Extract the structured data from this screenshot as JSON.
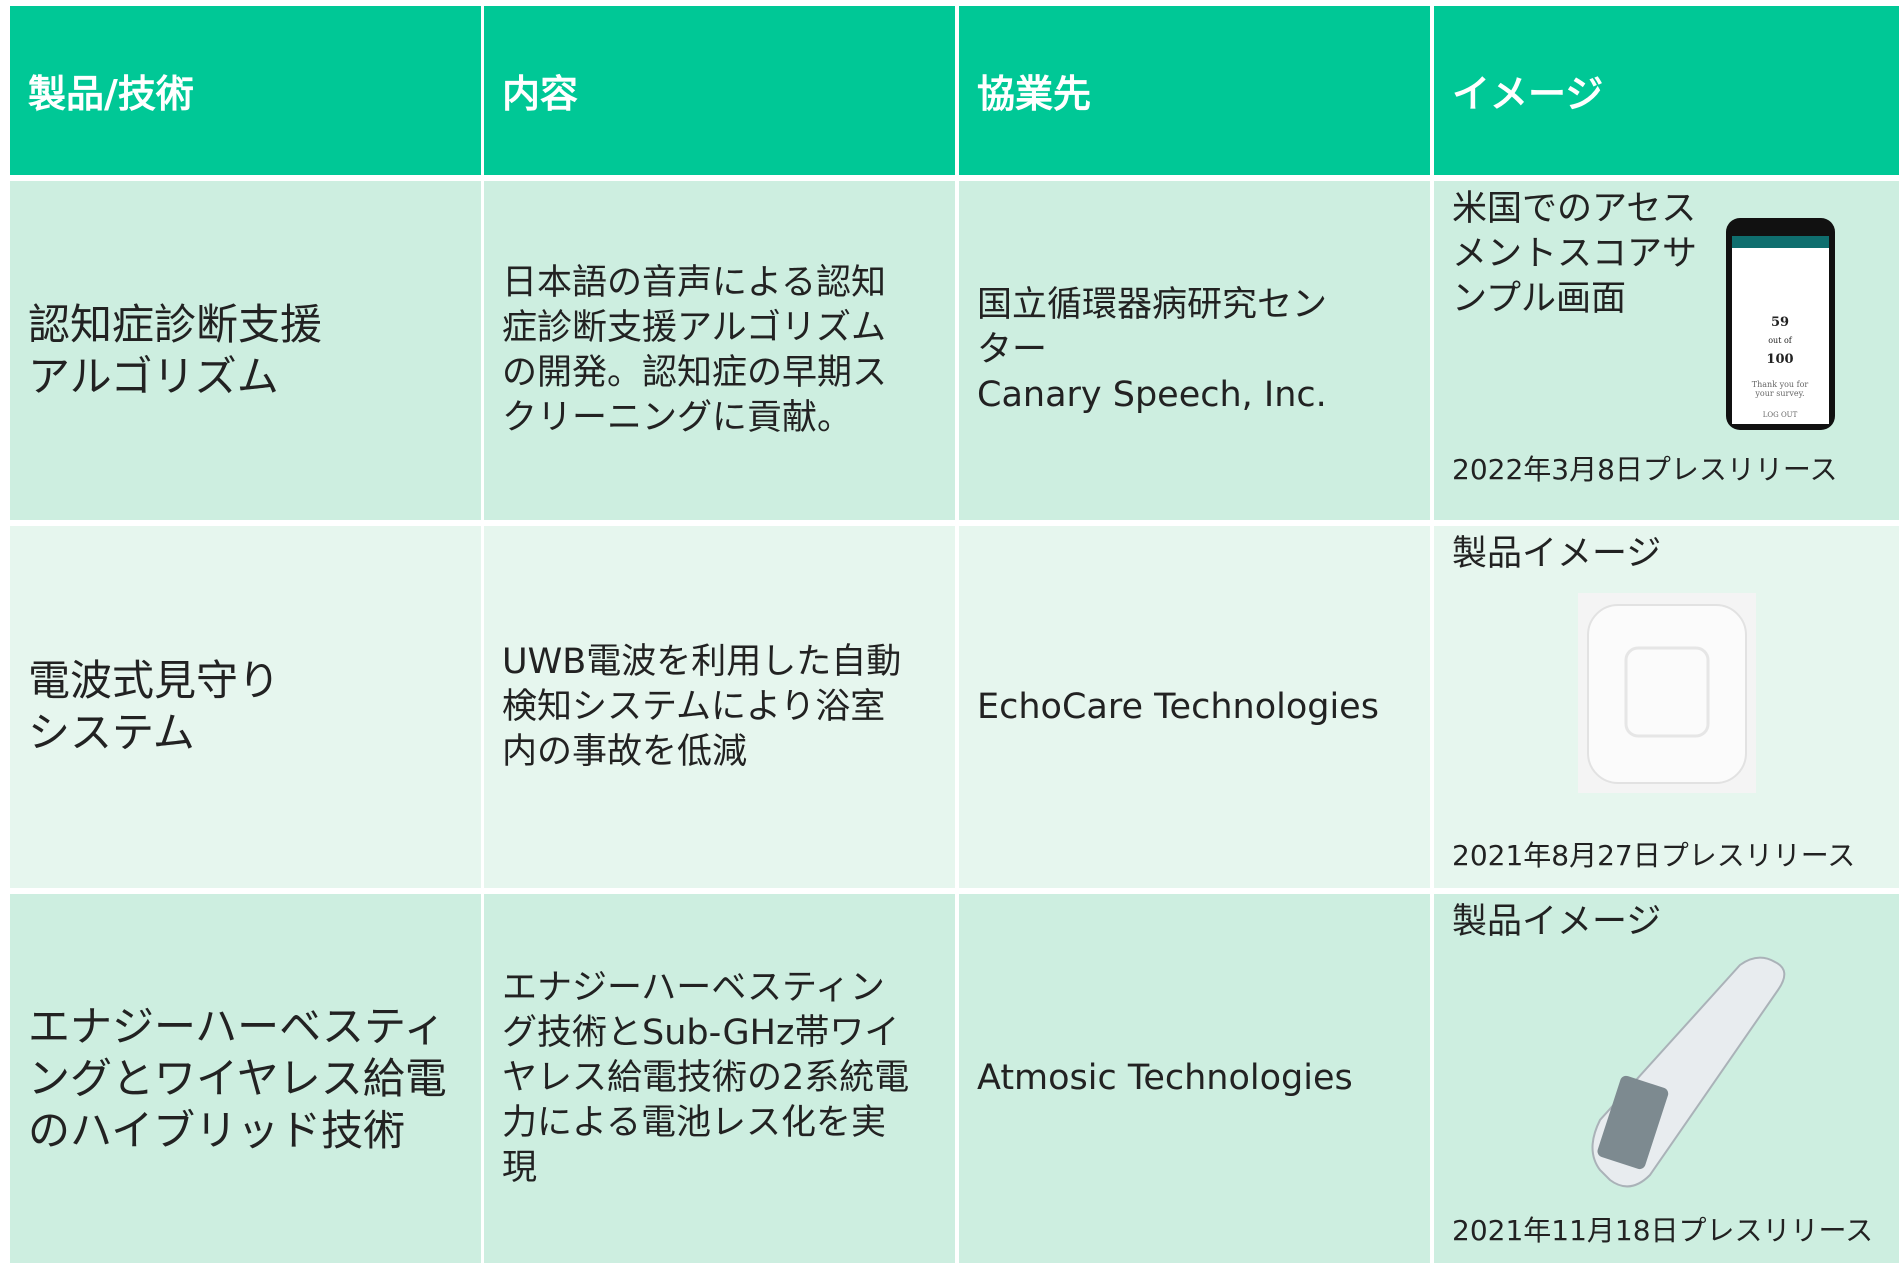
{
  "header": [
    "製品/技術",
    "内容",
    "協業先",
    "イメージ"
  ],
  "rows": [
    {
      "product": [
        "認知症診断支援",
        "アルゴリズム"
      ],
      "content": [
        "日本語の音声による認知",
        "症診断支援アルゴリズム",
        "の開発。認知症の早期ス",
        "クリーニングに貢献。"
      ],
      "partner": [
        "国立循環器病研究セン",
        "ター",
        "Canary Speech, Inc."
      ],
      "image_caption": [
        "米国でのアセス",
        "メントスコアサ",
        "ンプル画面"
      ],
      "image_screen": [
        "59",
        "out of",
        "100",
        "Thank you for",
        "your survey.",
        "LOG OUT"
      ],
      "image_date": "2022年3月8日プレスリリース"
    },
    {
      "product": [
        "電波式見守り",
        "システム"
      ],
      "content": [
        "UWB電波を利用した自動",
        "検知システムにより浴室",
        "内の事故を低減"
      ],
      "partner": [
        "EchoCare Technologies"
      ],
      "image_caption": [
        "製品イメージ"
      ],
      "image_date": "2021年8月27日プレスリリース"
    },
    {
      "product": [
        "エナジーハーベスティ",
        "ングとワイヤレス給電",
        "のハイブリッド技術"
      ],
      "content": [
        "エナジーハーベスティン",
        "グ技術とSub-GHz帯ワイ",
        "ヤレス給電技術の2系統電",
        "力による電池レス化を実",
        "現"
      ],
      "partner": [
        "Atmosic Technologies"
      ],
      "image_caption": [
        "製品イメージ"
      ],
      "image_date": "2021年11月18日プレスリリース"
    }
  ]
}
